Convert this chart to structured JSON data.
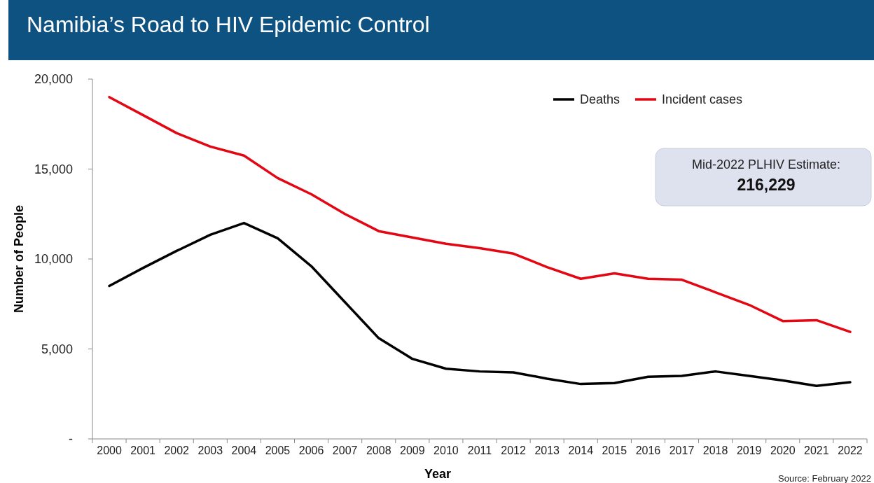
{
  "chart_data": {
    "type": "line",
    "title": "Namibia’s Road to HIV Epidemic Control",
    "xlabel": "Year",
    "ylabel": "Number of People",
    "categories": [
      "2000",
      "2001",
      "2002",
      "2003",
      "2004",
      "2005",
      "2006",
      "2007",
      "2008",
      "2009",
      "2010",
      "2011",
      "2012",
      "2013",
      "2014",
      "2015",
      "2016",
      "2017",
      "2018",
      "2019",
      "2020",
      "2021",
      "2022"
    ],
    "series": [
      {
        "name": "Deaths",
        "color": "#000000",
        "values": [
          8500,
          9500,
          10450,
          11350,
          12000,
          11150,
          9600,
          7600,
          5600,
          4450,
          3900,
          3750,
          3700,
          3350,
          3050,
          3100,
          3450,
          3500,
          3750,
          3500,
          3250,
          2950,
          3150
        ]
      },
      {
        "name": "Incident cases",
        "color": "#e30613",
        "values": [
          19000,
          18000,
          17000,
          16250,
          15750,
          14500,
          13600,
          12500,
          11550,
          11200,
          10850,
          10600,
          10300,
          9550,
          8900,
          9200,
          8900,
          8850,
          8150,
          7450,
          6550,
          6600,
          5950
        ]
      }
    ],
    "ylim": [
      0,
      20000
    ],
    "yticks": [
      {
        "value": 0,
        "label": "-"
      },
      {
        "value": 5000,
        "label": "5,000"
      },
      {
        "value": 10000,
        "label": "10,000"
      },
      {
        "value": 15000,
        "label": "15,000"
      },
      {
        "value": 20000,
        "label": "20,000"
      }
    ],
    "legend": "top right",
    "grid": false,
    "marker": "none",
    "line_style": "solid",
    "annotations": [
      "Mid-2022 PLHIV Estimate:",
      "216,229",
      "Source: February 2022"
    ]
  }
}
